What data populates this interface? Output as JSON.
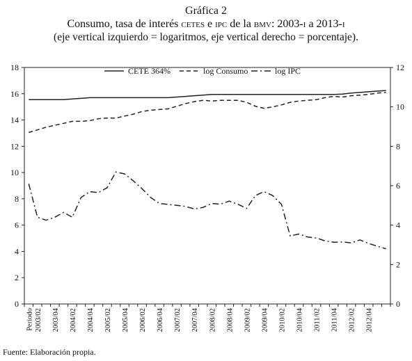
{
  "figure": {
    "label": "Gráfica 2",
    "title_line1_a": "Consumo, tasa de interés ",
    "title_line1_b": "cetes",
    "title_line1_c": " e ",
    "title_line1_d": "ipc",
    "title_line1_e": " de la ",
    "title_line1_f": "bmv",
    "title_line1_g": ": 2003-",
    "title_line1_h": "i",
    "title_line1_i": " a 2013-",
    "title_line1_j": "i",
    "title_line2": "(eje vertical izquierdo = logaritmos, eje vertical derecho = porcentaje).",
    "source": "Fuente: Elaboración propia."
  },
  "chart_data": {
    "type": "line",
    "x": [
      "Periodo",
      "2003/01",
      "2003/02",
      "2003/03",
      "2003/04",
      "2004/01",
      "2004/02",
      "2004/03",
      "2004/04",
      "2005/01",
      "2005/02",
      "2005/03",
      "2005/04",
      "2006/01",
      "2006/02",
      "2006/03",
      "2006/04",
      "2007/01",
      "2007/02",
      "2007/03",
      "2007/04",
      "2008/01",
      "2008/02",
      "2008/03",
      "2008/04",
      "2009/01",
      "2009/02",
      "2009/03",
      "2009/04",
      "2010/01",
      "2010/02",
      "2010/03",
      "2010/04",
      "2011/01",
      "2011/02",
      "2011/03",
      "2011/04",
      "2012/01",
      "2012/02",
      "2012/03",
      "2012/04",
      "2013/01"
    ],
    "x_tick_labels": [
      "Periodo",
      "2003/02",
      "2003/04",
      "2004/02",
      "2004/04",
      "2005/02",
      "2005/04",
      "2006/02",
      "2006/04",
      "2007/02",
      "2007/04",
      "2008/02",
      "2008/04",
      "2009/02",
      "2009/04",
      "2010/02",
      "2010/04",
      "2011/02",
      "2011/04",
      "2012/02",
      "2012/04"
    ],
    "y_left_ticks": [
      "0",
      "2",
      "4",
      "6",
      "8",
      "10",
      "12",
      "14",
      "16",
      "18"
    ],
    "y_left_lim": [
      0,
      18
    ],
    "y_right_ticks": [
      "0",
      "2",
      "4",
      "6",
      "8",
      "10",
      "12"
    ],
    "y_right_lim": [
      0,
      12
    ],
    "legend_position": "top-center",
    "series": [
      {
        "name": "CETE 364%",
        "axis": "left",
        "style": "solid",
        "color": "#222222",
        "values": [
          15.55,
          15.55,
          15.55,
          15.55,
          15.55,
          15.6,
          15.65,
          15.7,
          15.7,
          15.7,
          15.7,
          15.7,
          15.7,
          15.7,
          15.7,
          15.7,
          15.7,
          15.75,
          15.8,
          15.85,
          15.9,
          15.95,
          15.95,
          15.95,
          15.95,
          15.95,
          15.95,
          15.95,
          15.95,
          15.95,
          15.95,
          15.95,
          15.95,
          15.95,
          15.95,
          15.95,
          15.98,
          16.05,
          16.1,
          16.15,
          16.2,
          16.25
        ]
      },
      {
        "name": "log Consumo",
        "axis": "left",
        "style": "dashed",
        "color": "#222222",
        "values": [
          13.05,
          13.25,
          13.45,
          13.6,
          13.75,
          13.9,
          13.9,
          13.95,
          14.1,
          14.15,
          14.15,
          14.3,
          14.45,
          14.65,
          14.75,
          14.8,
          14.85,
          15.05,
          15.25,
          15.4,
          15.5,
          15.45,
          15.5,
          15.5,
          15.5,
          15.35,
          15.05,
          14.9,
          15.0,
          15.15,
          15.35,
          15.45,
          15.5,
          15.55,
          15.7,
          15.8,
          15.75,
          15.85,
          15.9,
          15.95,
          16.05,
          16.1
        ]
      },
      {
        "name": "log IPC",
        "axis": "right",
        "style": "dashdot",
        "color": "#222222",
        "values": [
          6.1,
          4.4,
          4.25,
          4.4,
          4.65,
          4.4,
          5.4,
          5.7,
          5.65,
          5.9,
          6.7,
          6.6,
          6.25,
          5.85,
          5.4,
          5.1,
          5.05,
          5.0,
          4.95,
          4.82,
          4.9,
          5.1,
          5.06,
          5.22,
          5.06,
          4.85,
          5.5,
          5.7,
          5.5,
          5.05,
          3.45,
          3.55,
          3.4,
          3.35,
          3.2,
          3.13,
          3.15,
          3.1,
          3.25,
          3.07,
          2.93,
          2.8
        ]
      }
    ]
  }
}
